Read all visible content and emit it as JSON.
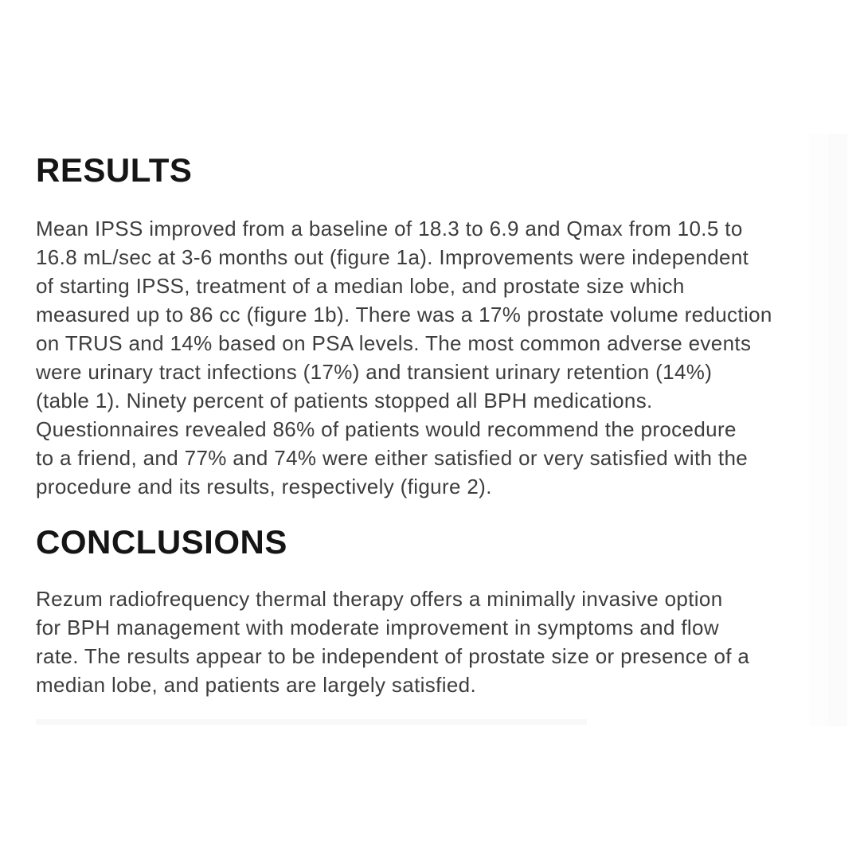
{
  "colors": {
    "background": "#ffffff",
    "heading_text": "#151515",
    "body_text": "#3d3d3d",
    "divider": "#f8f8f8"
  },
  "sections": [
    {
      "heading": "RESULTS",
      "lines": [
        "Mean IPSS improved from a baseline of 18.3 to 6.9 and Qmax from 10.5 to",
        "16.8 mL/sec at 3-6 months out (figure 1a). Improvements were independent",
        "of starting IPSS, treatment of a median lobe, and prostate size which",
        "measured up to 86 cc (figure 1b). There was a 17% prostate volume reduction",
        "on TRUS and 14% based on PSA levels. The most common adverse events",
        "were urinary tract infections (17%) and transient urinary retention (14%)",
        "(table 1). Ninety percent of patients stopped all BPH medications.",
        "Questionnaires revealed 86% of patients would recommend the procedure",
        "to a friend, and 77% and 74% were either satisfied or very satisfied with the",
        "procedure and its results, respectively (figure 2)."
      ]
    },
    {
      "heading": "CONCLUSIONS",
      "lines": [
        "Rezum radiofrequency thermal therapy offers a minimally invasive option",
        "for BPH management with moderate improvement in symptoms and flow",
        "rate. The results appear to be independent of prostate size or presence of a",
        "median lobe, and patients are largely satisfied."
      ]
    }
  ]
}
